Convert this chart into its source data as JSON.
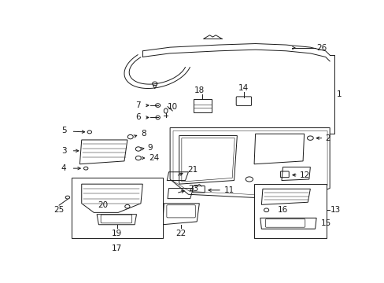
{
  "bg_color": "#ffffff",
  "fig_width": 4.89,
  "fig_height": 3.6,
  "dpi": 100,
  "line_color": "#1a1a1a",
  "lw": 0.7,
  "fs": 6.5
}
